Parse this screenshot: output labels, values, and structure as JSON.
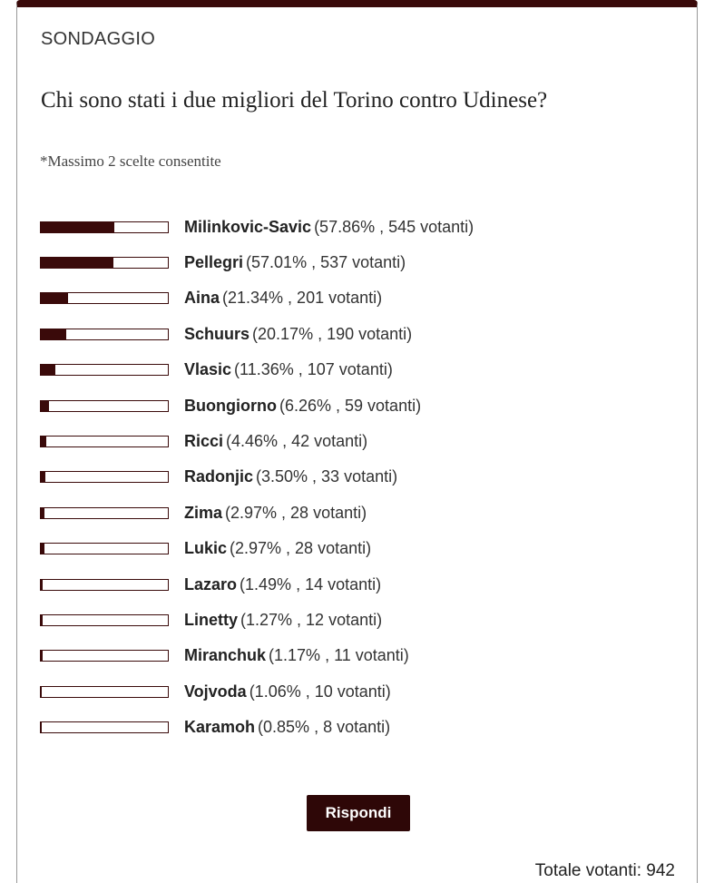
{
  "poll": {
    "label": "SONDAGGIO",
    "question": "Chi sono stati i due migliori del Torino contro Udinese?",
    "note": "*Massimo 2 scelte consentite",
    "options": [
      {
        "name": "Milinkovic-Savic",
        "percent": 57.86,
        "detail": "(57.86% , 545 votanti)"
      },
      {
        "name": "Pellegri",
        "percent": 57.01,
        "detail": "(57.01% , 537 votanti)"
      },
      {
        "name": "Aina",
        "percent": 21.34,
        "detail": "(21.34% , 201 votanti)"
      },
      {
        "name": "Schuurs",
        "percent": 20.17,
        "detail": "(20.17% , 190 votanti)"
      },
      {
        "name": "Vlasic",
        "percent": 11.36,
        "detail": "(11.36% , 107 votanti)"
      },
      {
        "name": "Buongiorno",
        "percent": 6.26,
        "detail": "(6.26% , 59 votanti)"
      },
      {
        "name": "Ricci",
        "percent": 4.46,
        "detail": "(4.46% , 42 votanti)"
      },
      {
        "name": "Radonjic",
        "percent": 3.5,
        "detail": "(3.50% , 33 votanti)"
      },
      {
        "name": "Zima",
        "percent": 2.97,
        "detail": "(2.97% , 28 votanti)"
      },
      {
        "name": "Lukic",
        "percent": 2.97,
        "detail": "(2.97% , 28 votanti)"
      },
      {
        "name": "Lazaro",
        "percent": 1.49,
        "detail": "(1.49% , 14 votanti)"
      },
      {
        "name": "Linetty",
        "percent": 1.27,
        "detail": "(1.27% , 12 votanti)"
      },
      {
        "name": "Miranchuk",
        "percent": 1.17,
        "detail": "(1.17% , 11 votanti)"
      },
      {
        "name": "Vojvoda",
        "percent": 1.06,
        "detail": "(1.06% , 10 votanti)"
      },
      {
        "name": "Karamoh",
        "percent": 0.85,
        "detail": "(0.85% , 8 votanti)"
      }
    ],
    "button": "Rispondi",
    "total": "Totale votanti: 942"
  }
}
